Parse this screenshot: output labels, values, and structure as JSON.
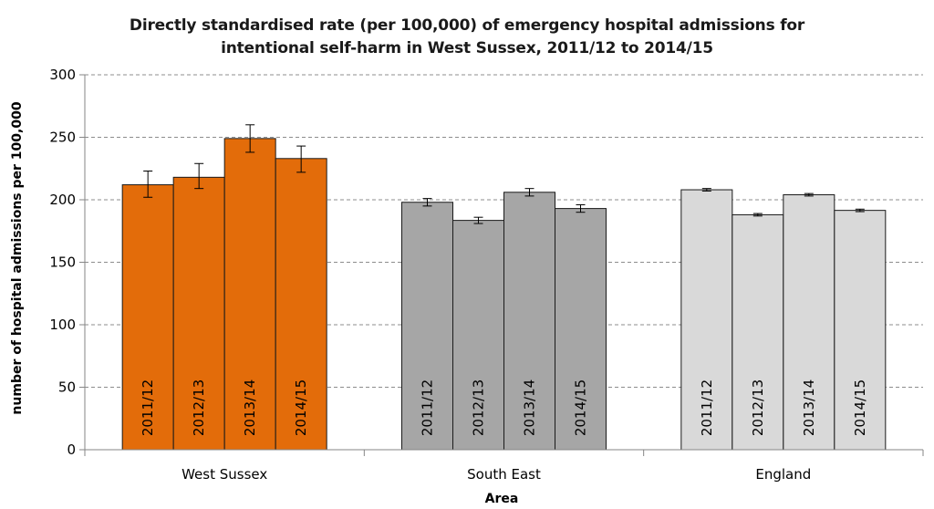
{
  "chart_data": {
    "type": "bar",
    "title_line1": "Directly standardised rate (per 100,000) of emergency hospital admissions for",
    "title_line2": "intentional self-harm in West Sussex, 2011/12 to 2014/15",
    "xlabel": "Area",
    "ylabel": "number of hospital admissions per 100,000",
    "ylim": [
      0,
      300
    ],
    "yticks": [
      0,
      50,
      100,
      150,
      200,
      250,
      300
    ],
    "grid": true,
    "legend": "none",
    "groups": [
      {
        "name": "West Sussex",
        "color": "#E36C0A",
        "bars": [
          {
            "label": "2011/12",
            "value": 212,
            "err_low": 202,
            "err_high": 223
          },
          {
            "label": "2012/13",
            "value": 218,
            "err_low": 209,
            "err_high": 229
          },
          {
            "label": "2013/14",
            "value": 249,
            "err_low": 238,
            "err_high": 260
          },
          {
            "label": "2014/15",
            "value": 233,
            "err_low": 222,
            "err_high": 243
          }
        ]
      },
      {
        "name": "South East",
        "color": "#A6A6A6",
        "bars": [
          {
            "label": "2011/12",
            "value": 198,
            "err_low": 195,
            "err_high": 201
          },
          {
            "label": "2012/13",
            "value": 183.5,
            "err_low": 181,
            "err_high": 186
          },
          {
            "label": "2013/14",
            "value": 206,
            "err_low": 203,
            "err_high": 209
          },
          {
            "label": "2014/15",
            "value": 193,
            "err_low": 190,
            "err_high": 196
          }
        ]
      },
      {
        "name": "England",
        "color": "#D9D9D9",
        "bars": [
          {
            "label": "2011/12",
            "value": 208,
            "err_low": 207,
            "err_high": 209
          },
          {
            "label": "2012/13",
            "value": 188,
            "err_low": 187,
            "err_high": 189
          },
          {
            "label": "2013/14",
            "value": 204,
            "err_low": 203,
            "err_high": 205
          },
          {
            "label": "2014/15",
            "value": 191.5,
            "err_low": 190.5,
            "err_high": 192.5
          }
        ]
      }
    ]
  }
}
